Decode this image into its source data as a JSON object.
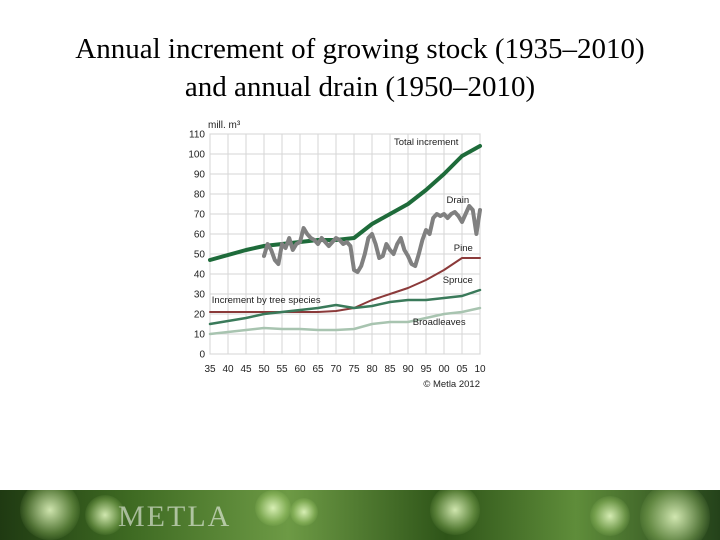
{
  "slide": {
    "title_line1": "Annual increment of growing stock (1935–2010)",
    "title_line2": "and annual drain (1950–2010)",
    "footer_logo": "METLA"
  },
  "chart_data": {
    "type": "line",
    "ylabel": "mill. m³",
    "ylim": [
      0,
      110
    ],
    "yticks": [
      0,
      10,
      20,
      30,
      40,
      50,
      60,
      70,
      80,
      90,
      100,
      110
    ],
    "xlim": [
      1935,
      2010
    ],
    "xticks": [
      1935,
      1940,
      1945,
      1950,
      1955,
      1960,
      1965,
      1970,
      1975,
      1980,
      1985,
      1990,
      1995,
      2000,
      2005,
      2010
    ],
    "xtick_labels": [
      "35",
      "40",
      "45",
      "50",
      "55",
      "60",
      "65",
      "70",
      "75",
      "80",
      "85",
      "90",
      "95",
      "00",
      "05",
      "10"
    ],
    "grid": true,
    "annotations": {
      "increment_by_species": "Increment by tree species",
      "copyright": "© Metla 2012"
    },
    "series": [
      {
        "name": "Total increment",
        "color": "#1e6b3a",
        "width": 4,
        "points": [
          [
            1935,
            47
          ],
          [
            1945,
            52
          ],
          [
            1950,
            54
          ],
          [
            1955,
            55
          ],
          [
            1960,
            56
          ],
          [
            1965,
            57
          ],
          [
            1970,
            57
          ],
          [
            1975,
            58
          ],
          [
            1980,
            65
          ],
          [
            1985,
            70
          ],
          [
            1990,
            75
          ],
          [
            1995,
            82
          ],
          [
            2000,
            90
          ],
          [
            2005,
            99
          ],
          [
            2010,
            104
          ]
        ]
      },
      {
        "name": "Drain",
        "color": "#808080",
        "width": 4,
        "points": [
          [
            1950,
            49
          ],
          [
            1951,
            55
          ],
          [
            1952,
            52
          ],
          [
            1953,
            47
          ],
          [
            1954,
            45
          ],
          [
            1955,
            55
          ],
          [
            1956,
            53
          ],
          [
            1957,
            58
          ],
          [
            1958,
            52
          ],
          [
            1959,
            55
          ],
          [
            1960,
            56
          ],
          [
            1961,
            63
          ],
          [
            1962,
            60
          ],
          [
            1963,
            58
          ],
          [
            1964,
            57
          ],
          [
            1965,
            55
          ],
          [
            1966,
            58
          ],
          [
            1967,
            56
          ],
          [
            1968,
            54
          ],
          [
            1969,
            56
          ],
          [
            1970,
            58
          ],
          [
            1971,
            57
          ],
          [
            1972,
            55
          ],
          [
            1973,
            56
          ],
          [
            1974,
            54
          ],
          [
            1975,
            42
          ],
          [
            1976,
            41
          ],
          [
            1977,
            44
          ],
          [
            1978,
            50
          ],
          [
            1979,
            58
          ],
          [
            1980,
            60
          ],
          [
            1981,
            55
          ],
          [
            1982,
            48
          ],
          [
            1983,
            49
          ],
          [
            1984,
            55
          ],
          [
            1985,
            52
          ],
          [
            1986,
            50
          ],
          [
            1987,
            55
          ],
          [
            1988,
            58
          ],
          [
            1989,
            52
          ],
          [
            1990,
            49
          ],
          [
            1991,
            45
          ],
          [
            1992,
            44
          ],
          [
            1993,
            50
          ],
          [
            1994,
            57
          ],
          [
            1995,
            62
          ],
          [
            1996,
            60
          ],
          [
            1997,
            68
          ],
          [
            1998,
            70
          ],
          [
            1999,
            69
          ],
          [
            2000,
            70
          ],
          [
            2001,
            68
          ],
          [
            2002,
            70
          ],
          [
            2003,
            71
          ],
          [
            2004,
            69
          ],
          [
            2005,
            66
          ],
          [
            2006,
            70
          ],
          [
            2007,
            74
          ],
          [
            2008,
            72
          ],
          [
            2009,
            60
          ],
          [
            2010,
            72
          ]
        ]
      },
      {
        "name": "Pine",
        "color": "#8b3a3a",
        "width": 2,
        "points": [
          [
            1935,
            21
          ],
          [
            1945,
            21
          ],
          [
            1950,
            21
          ],
          [
            1955,
            21
          ],
          [
            1960,
            21
          ],
          [
            1965,
            21
          ],
          [
            1970,
            21.5
          ],
          [
            1975,
            23
          ],
          [
            1980,
            27
          ],
          [
            1985,
            30
          ],
          [
            1990,
            33
          ],
          [
            1995,
            37
          ],
          [
            2000,
            42
          ],
          [
            2005,
            48
          ],
          [
            2010,
            48
          ]
        ]
      },
      {
        "name": "Spruce",
        "color": "#3a7a5a",
        "width": 2.5,
        "points": [
          [
            1935,
            15
          ],
          [
            1945,
            18
          ],
          [
            1950,
            20
          ],
          [
            1955,
            21
          ],
          [
            1960,
            22
          ],
          [
            1965,
            23
          ],
          [
            1970,
            24.5
          ],
          [
            1975,
            23
          ],
          [
            1980,
            24
          ],
          [
            1985,
            26
          ],
          [
            1990,
            27
          ],
          [
            1995,
            27
          ],
          [
            2000,
            28
          ],
          [
            2005,
            29
          ],
          [
            2010,
            32
          ]
        ]
      },
      {
        "name": "Broadleaves",
        "color": "#a8c4b0",
        "width": 2.5,
        "points": [
          [
            1935,
            10
          ],
          [
            1945,
            12
          ],
          [
            1950,
            13
          ],
          [
            1955,
            12.5
          ],
          [
            1960,
            12.5
          ],
          [
            1965,
            12
          ],
          [
            1970,
            12
          ],
          [
            1975,
            12.5
          ],
          [
            1980,
            15
          ],
          [
            1985,
            16
          ],
          [
            1990,
            16
          ],
          [
            1995,
            18
          ],
          [
            2000,
            20
          ],
          [
            2005,
            21
          ],
          [
            2010,
            23
          ]
        ]
      }
    ]
  }
}
